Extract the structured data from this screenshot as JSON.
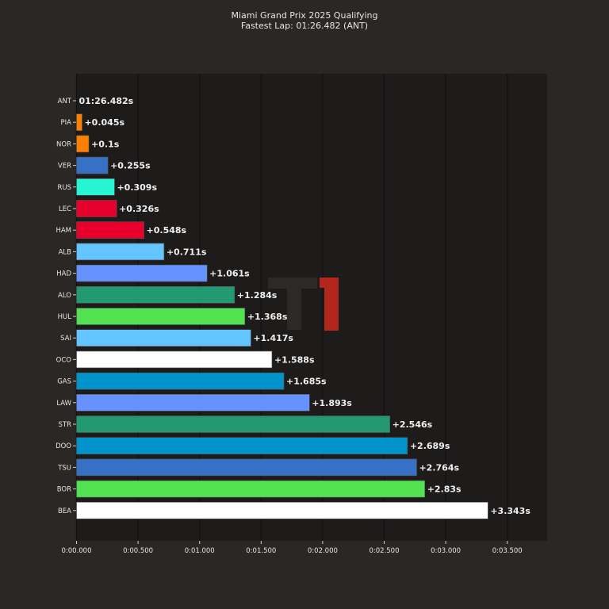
{
  "chart_data": {
    "type": "bar",
    "orientation": "horizontal",
    "title": "Miami Grand Prix 2025 Qualifying",
    "subtitle": "Fastest Lap: 01:26.482 (ANT)",
    "xlabel": "",
    "ylabel": "",
    "xlim": [
      0,
      3.8
    ],
    "grid": "x",
    "x_tick_values": [
      0,
      0.5,
      1.0,
      1.5,
      2.0,
      2.5,
      3.0,
      3.5
    ],
    "x_tick_labels": [
      "0:00.000",
      "0:00.500",
      "0:01.000",
      "0:01.500",
      "0:02.000",
      "0:02.500",
      "0:03.000",
      "0:03.500"
    ],
    "categories": [
      "ANT",
      "PIA",
      "NOR",
      "VER",
      "RUS",
      "LEC",
      "HAM",
      "ALB",
      "HAD",
      "ALO",
      "HUL",
      "SAI",
      "OCO",
      "GAS",
      "LAW",
      "STR",
      "DOO",
      "TSU",
      "BOR",
      "BEA"
    ],
    "values": [
      0,
      0.045,
      0.1,
      0.255,
      0.309,
      0.326,
      0.548,
      0.711,
      1.061,
      1.284,
      1.368,
      1.417,
      1.588,
      1.685,
      1.893,
      2.546,
      2.689,
      2.764,
      2.83,
      3.343
    ],
    "data_labels": [
      "01:26.482s",
      "+0.045s",
      "+0.1s",
      "+0.255s",
      "+0.309s",
      "+0.326s",
      "+0.548s",
      "+0.711s",
      "+1.061s",
      "+1.284s",
      "+1.368s",
      "+1.417s",
      "+1.588s",
      "+1.685s",
      "+1.893s",
      "+2.546s",
      "+2.689s",
      "+2.764s",
      "+2.83s",
      "+3.343s"
    ],
    "colors": [
      "#00d2be",
      "#ff8000",
      "#ff8000",
      "#3671c6",
      "#27f4d2",
      "#e8002d",
      "#e8002d",
      "#64c4ff",
      "#6692ff",
      "#229971",
      "#52e252",
      "#64c4ff",
      "#ffffff",
      "#0093cc",
      "#6692ff",
      "#229971",
      "#0093cc",
      "#3671c6",
      "#52e252",
      "#ffffff"
    ]
  },
  "theme": {
    "background": "#2a2725",
    "plot_background": "#1e1c1b",
    "grid_color": "#111111",
    "text_color": "#e6e6e6",
    "watermark_accent": "#b3261e"
  }
}
